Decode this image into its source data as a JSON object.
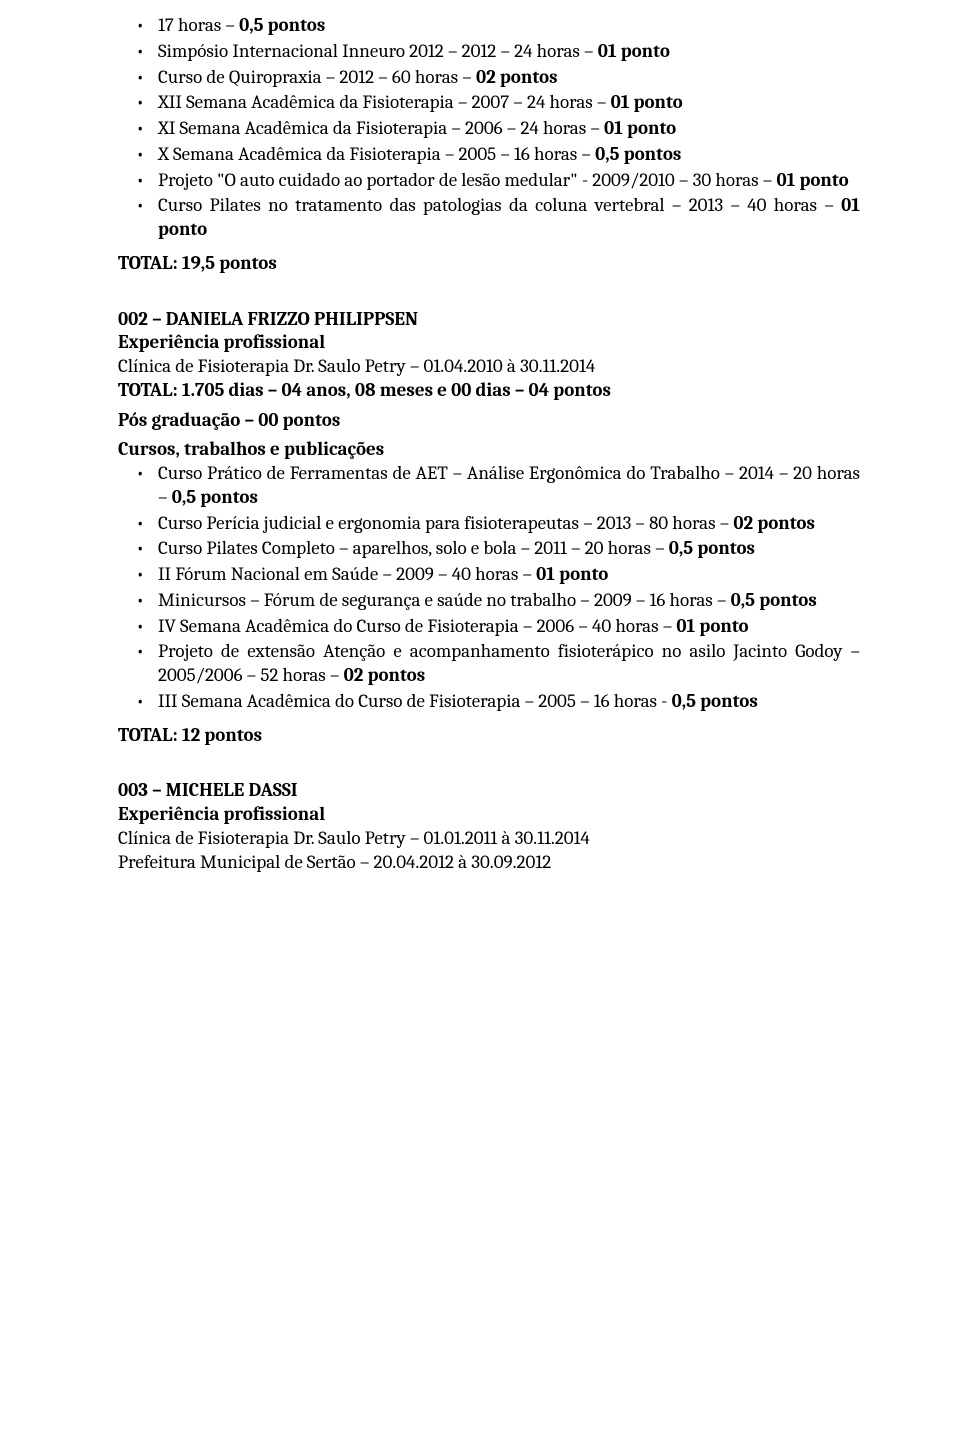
{
  "intro_bullets": [
    {
      "plain": "17 horas – ",
      "bold": "0,5 pontos"
    },
    {
      "plain": "Simpósio Internacional Inneuro 2012 – 2012 – 24 horas – ",
      "bold": "01 ponto"
    },
    {
      "plain": "Curso de Quiropraxia – 2012 – 60 horas – ",
      "bold": "02 pontos"
    },
    {
      "plain": "XII Semana Acadêmica da Fisioterapia – 2007 – 24 horas – ",
      "bold": "01 ponto"
    },
    {
      "plain": " XI Semana Acadêmica da Fisioterapia – 2006 – 24 horas – ",
      "bold": "01 ponto"
    },
    {
      "plain": "X Semana Acadêmica da Fisioterapia – 2005 – 16 horas – ",
      "bold": "0,5 pontos"
    },
    {
      "plain": "Projeto \"O auto cuidado ao portador de lesão medular\" - 2009/2010 – 30 horas – ",
      "bold": "01 ponto"
    },
    {
      "plain": "Curso Pilates no tratamento das patologias da coluna vertebral – 2013 – 40 horas – ",
      "bold": "01 ponto"
    }
  ],
  "total1": "TOTAL: 19,5 pontos",
  "cand002": {
    "title": "002 – DANIELA FRIZZO PHILIPPSEN",
    "exp_label": "Experiência profissional",
    "exp_line": "Clínica de Fisioterapia Dr. Saulo Petry – 01.04.2010 à 30.11.2014",
    "total_days": "TOTAL: 1.705 dias – 04 anos, 08 meses e 00 dias – 04 pontos",
    "pos_grad": "Pós graduação – 00 pontos",
    "cursos_label": "Cursos, trabalhos e publicações",
    "bullets": [
      {
        "plain": "Curso Prático de Ferramentas de AET – Análise Ergonômica do Trabalho – 2014 – 20 horas – ",
        "bold": "0,5 pontos"
      },
      {
        "plain": "Curso Perícia judicial e ergonomia para fisioterapeutas – 2013 – 80 horas – ",
        "bold": "02 pontos"
      },
      {
        "plain": "Curso Pilates Completo – aparelhos, solo e bola – 2011 – 20 horas – ",
        "bold": "0,5 pontos"
      },
      {
        "plain": "II Fórum Nacional em Saúde – 2009 – 40 horas – ",
        "bold": "01 ponto"
      },
      {
        "plain": "Minicursos – Fórum de segurança e saúde no trabalho – 2009 – 16 horas – ",
        "bold": "0,5 pontos"
      },
      {
        "plain": "IV Semana Acadêmica do Curso de Fisioterapia – 2006 – 40 horas – ",
        "bold": "01 ponto"
      },
      {
        "plain": "Projeto de extensão Atenção e acompanhamento fisioterápico no asilo Jacinto Godoy – 2005/2006 – 52 horas – ",
        "bold": "02 pontos"
      },
      {
        "plain": "III Semana Acadêmica do Curso de Fisioterapia – 2005 – 16 horas - ",
        "bold": "0,5 pontos"
      }
    ],
    "total": "TOTAL: 12 pontos"
  },
  "cand003": {
    "title": "003 – MICHELE DASSI",
    "exp_label": "Experiência profissional",
    "line1": "Clínica de Fisioterapia Dr. Saulo Petry – 01.01.2011 à 30.11.2014",
    "line2": "Prefeitura Municipal de Sertão – 20.04.2012 à 30.09.2012"
  }
}
